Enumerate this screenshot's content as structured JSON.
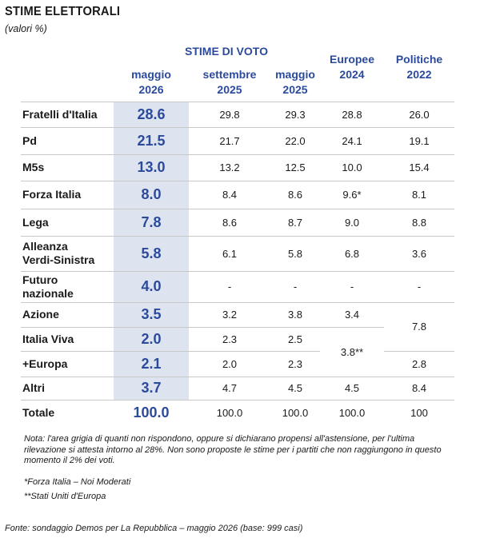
{
  "title": "STIME ELETTORALI",
  "subtitle": "(valori %)",
  "header": {
    "group": "STIME DI VOTO",
    "cols": [
      {
        "l1": "maggio",
        "l2": "2026"
      },
      {
        "l1": "settembre",
        "l2": "2025"
      },
      {
        "l1": "maggio",
        "l2": "2025"
      },
      {
        "l1": "Europee",
        "l2": "2024"
      },
      {
        "l1": "Politiche",
        "l2": "2022"
      }
    ]
  },
  "chart_data": {
    "type": "table",
    "rows": [
      {
        "party": [
          "Fratelli d'Italia"
        ],
        "main": "28.6",
        "v": [
          "29.8",
          "29.3",
          "28.8",
          "26.0"
        ]
      },
      {
        "party": [
          "Pd"
        ],
        "main": "21.5",
        "v": [
          "21.7",
          "22.0",
          "24.1",
          "19.1"
        ]
      },
      {
        "party": [
          "M5s"
        ],
        "main": "13.0",
        "v": [
          "13.2",
          "12.5",
          "10.0",
          "15.4"
        ]
      },
      {
        "party": [
          "Forza Italia"
        ],
        "main": "8.0",
        "v": [
          "8.4",
          "8.6",
          "9.6*",
          "8.1"
        ]
      },
      {
        "party": [
          "Lega"
        ],
        "main": "7.8",
        "v": [
          "8.6",
          "8.7",
          "9.0",
          "8.8"
        ]
      },
      {
        "party": [
          "Alleanza",
          "Verdi-Sinistra"
        ],
        "main": "5.8",
        "v": [
          "6.1",
          "5.8",
          "6.8",
          "3.6"
        ]
      },
      {
        "party": [
          "Futuro",
          "nazionale"
        ],
        "main": "4.0",
        "v": [
          "-",
          "-",
          "-",
          "-"
        ]
      },
      {
        "party": [
          "Azione"
        ],
        "main": "3.5",
        "v": [
          "3.2",
          "3.8",
          "3.4",
          ""
        ]
      },
      {
        "party": [
          "Italia Viva"
        ],
        "main": "2.0",
        "v": [
          "2.3",
          "2.5",
          "",
          ""
        ]
      },
      {
        "party": [
          "+Europa"
        ],
        "main": "2.1",
        "v": [
          "2.0",
          "2.3",
          "",
          "2.8"
        ]
      },
      {
        "party": [
          "Altri"
        ],
        "main": "3.7",
        "v": [
          "4.7",
          "4.5",
          "4.5",
          "8.4"
        ]
      },
      {
        "party": [
          "Totale"
        ],
        "main": "100.0",
        "v": [
          "100.0",
          "100.0",
          "100.0",
          "100"
        ]
      }
    ],
    "merged": {
      "europee_italia_viva_europa": "3.8**",
      "politiche_azione_italia_viva": "7.8"
    }
  },
  "notes": "Nota: l'area grigia di quanti non rispondono, oppure si dichiarano propensi all'astensione, per l'ultima rilevazione si attesta intorno al 28%. Non sono proposte le stime per i partiti che non raggiungono in questo momento il 2% dei voti.",
  "footnotes": [
    "*Forza Italia – Noi Moderati",
    "**Stati Uniti d'Europa"
  ],
  "source": "Fonte: sondaggio Demos per La Repubblica – maggio 2026 (base: 999 casi)"
}
